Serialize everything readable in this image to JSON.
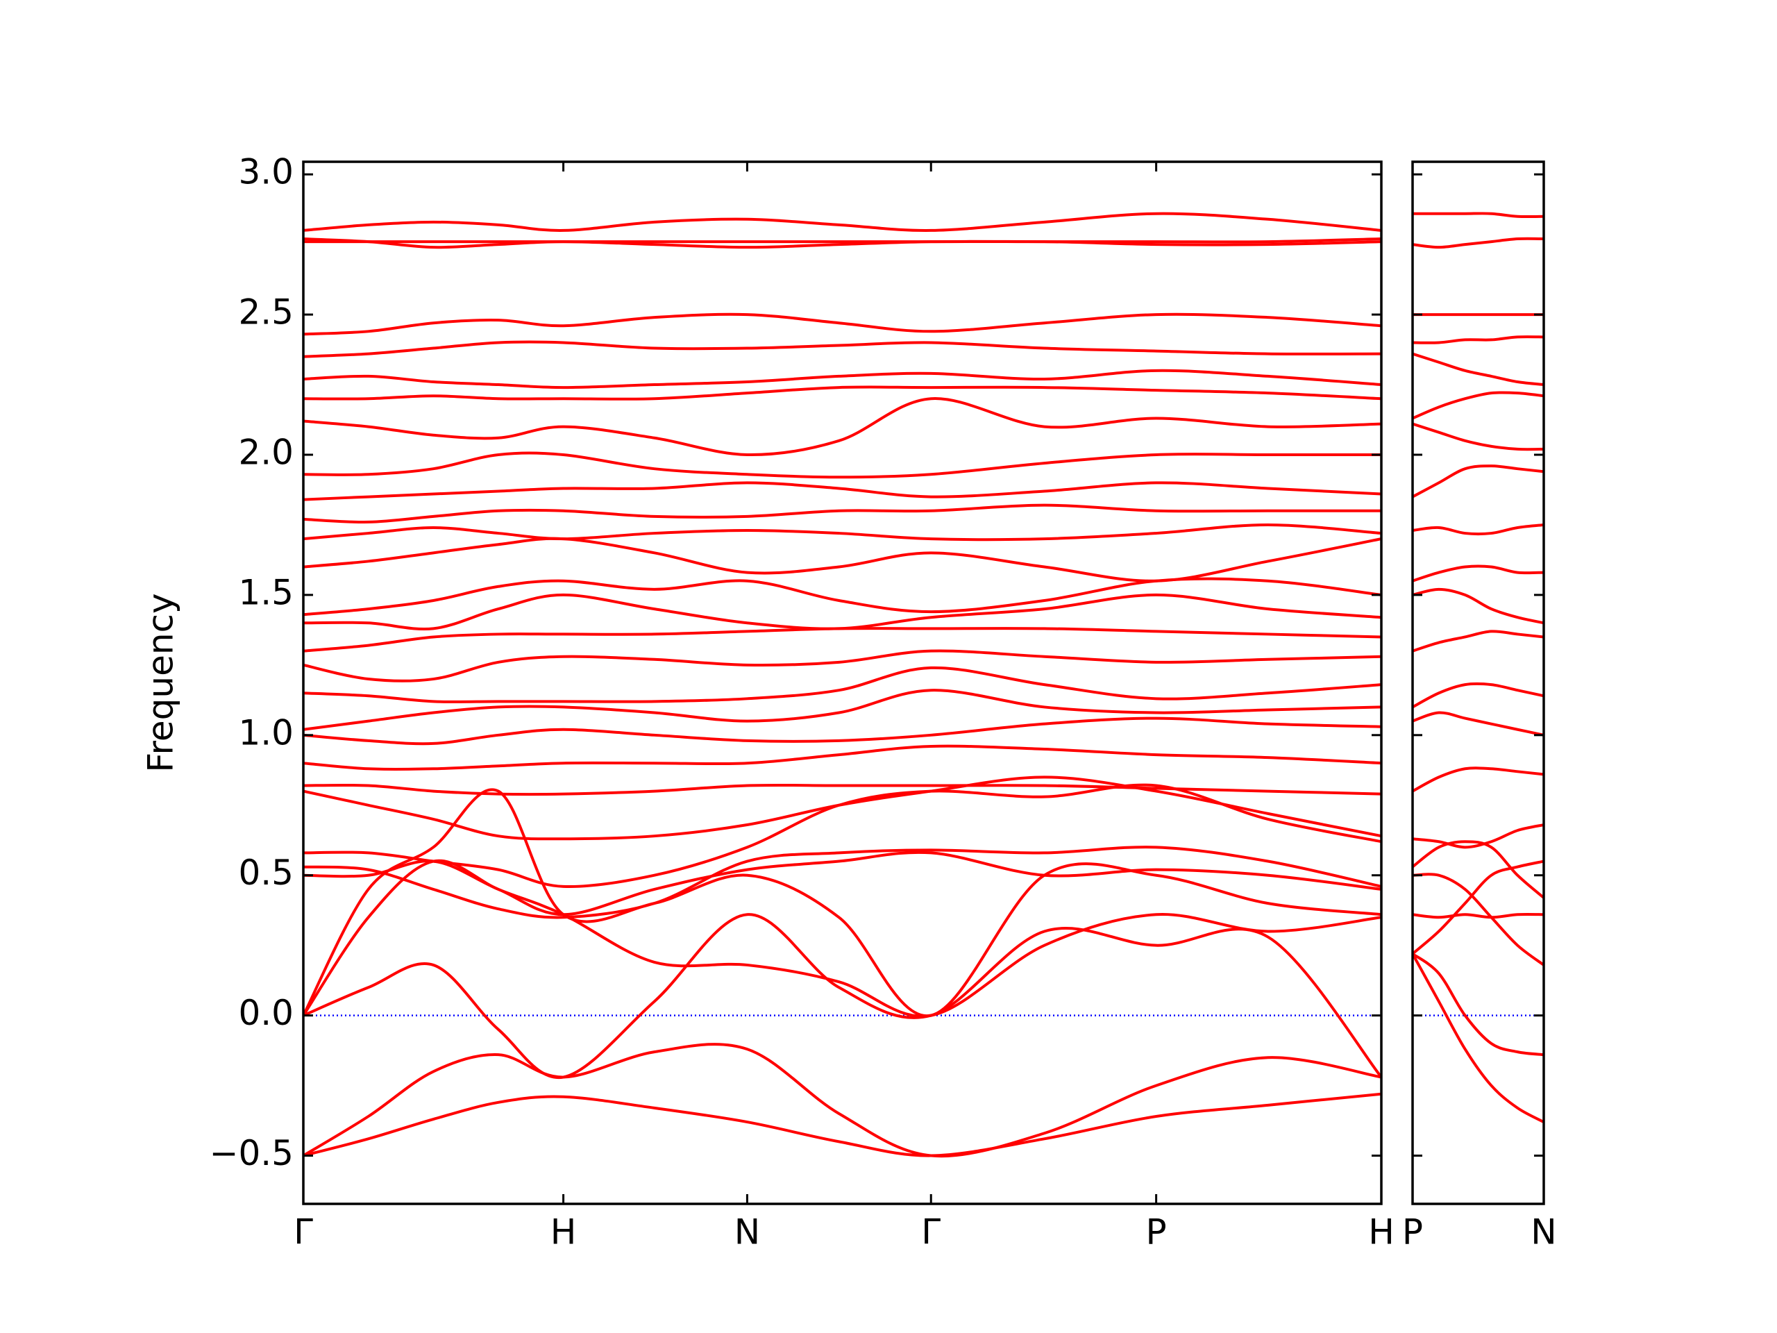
{
  "chart_data": [
    {
      "type": "line",
      "ylabel": "Frequency",
      "color": "#ff0000",
      "reference_line": {
        "value": 0,
        "color": "#0000ff",
        "style": "dotted"
      },
      "xlim": [
        0,
        4.146
      ],
      "ylim": [
        -0.672,
        3.045
      ],
      "xticks": [
        {
          "value": 0,
          "label": "Γ"
        },
        {
          "value": 1,
          "label": "H"
        },
        {
          "value": 1.707,
          "label": "N"
        },
        {
          "value": 2.414,
          "label": "Γ"
        },
        {
          "value": 3.28,
          "label": "P"
        },
        {
          "value": 4.146,
          "label": "H"
        }
      ],
      "yticks": [
        {
          "value": -0.5,
          "label": "−0.5"
        },
        {
          "value": 0,
          "label": "0.0"
        },
        0.5,
        {
          "value": 1,
          "label": "1.0"
        },
        1.5,
        {
          "value": 2,
          "label": "2.0"
        },
        2.5,
        {
          "value": 3,
          "label": "3.0"
        }
      ],
      "x": [
        0,
        0.25,
        0.5,
        0.75,
        1,
        1.35,
        1.707,
        2.06,
        2.414,
        2.85,
        3.28,
        3.71,
        4.146
      ],
      "series": [
        {
          "values": [
            -0.5,
            -0.44,
            -0.37,
            -0.31,
            -0.29,
            -0.33,
            -0.38,
            -0.45,
            -0.5,
            -0.44,
            -0.36,
            -0.32,
            -0.28
          ]
        },
        {
          "values": [
            -0.5,
            -0.36,
            -0.2,
            -0.14,
            -0.22,
            -0.13,
            -0.12,
            -0.35,
            -0.5,
            -0.42,
            -0.25,
            -0.15,
            -0.22
          ]
        },
        {
          "values": [
            0,
            0.1,
            0.18,
            -0.05,
            -0.22,
            0.05,
            0.36,
            0.1,
            0,
            0.3,
            0.25,
            0.28,
            -0.22
          ]
        },
        {
          "values": [
            0,
            0.35,
            0.55,
            0.45,
            0.36,
            0.19,
            0.18,
            0.12,
            0,
            0.25,
            0.36,
            0.3,
            0.35
          ]
        },
        {
          "values": [
            0,
            0.45,
            0.6,
            0.8,
            0.36,
            0.4,
            0.5,
            0.35,
            0,
            0.5,
            0.5,
            0.4,
            0.36
          ]
        },
        {
          "values": [
            0.5,
            0.5,
            0.55,
            0.45,
            0.36,
            0.45,
            0.52,
            0.55,
            0.58,
            0.5,
            0.52,
            0.5,
            0.45
          ]
        },
        {
          "values": [
            0.53,
            0.52,
            0.45,
            0.38,
            0.35,
            0.4,
            0.55,
            0.58,
            0.59,
            0.58,
            0.6,
            0.55,
            0.46
          ]
        },
        {
          "values": [
            0.58,
            0.58,
            0.55,
            0.52,
            0.46,
            0.5,
            0.6,
            0.75,
            0.8,
            0.78,
            0.82,
            0.7,
            0.62
          ]
        },
        {
          "values": [
            0.8,
            0.75,
            0.7,
            0.64,
            0.63,
            0.64,
            0.68,
            0.75,
            0.8,
            0.85,
            0.8,
            0.72,
            0.64
          ]
        },
        {
          "values": [
            0.82,
            0.82,
            0.8,
            0.79,
            0.79,
            0.8,
            0.82,
            0.82,
            0.82,
            0.82,
            0.81,
            0.8,
            0.79
          ]
        },
        {
          "values": [
            0.9,
            0.88,
            0.88,
            0.89,
            0.9,
            0.9,
            0.9,
            0.93,
            0.96,
            0.95,
            0.93,
            0.92,
            0.9
          ]
        },
        {
          "values": [
            1.0,
            0.98,
            0.97,
            1.0,
            1.02,
            1.0,
            0.98,
            0.98,
            1.0,
            1.04,
            1.06,
            1.04,
            1.03
          ]
        },
        {
          "values": [
            1.02,
            1.05,
            1.08,
            1.1,
            1.1,
            1.08,
            1.05,
            1.08,
            1.16,
            1.1,
            1.08,
            1.09,
            1.1
          ]
        },
        {
          "values": [
            1.15,
            1.14,
            1.12,
            1.12,
            1.12,
            1.12,
            1.13,
            1.16,
            1.24,
            1.18,
            1.13,
            1.15,
            1.18
          ]
        },
        {
          "values": [
            1.25,
            1.2,
            1.2,
            1.26,
            1.28,
            1.27,
            1.25,
            1.26,
            1.3,
            1.28,
            1.26,
            1.27,
            1.28
          ]
        },
        {
          "values": [
            1.3,
            1.32,
            1.35,
            1.36,
            1.36,
            1.36,
            1.37,
            1.38,
            1.38,
            1.38,
            1.37,
            1.36,
            1.35
          ]
        },
        {
          "values": [
            1.4,
            1.4,
            1.38,
            1.45,
            1.5,
            1.45,
            1.4,
            1.38,
            1.42,
            1.45,
            1.5,
            1.45,
            1.42
          ]
        },
        {
          "values": [
            1.43,
            1.45,
            1.48,
            1.53,
            1.55,
            1.52,
            1.55,
            1.48,
            1.44,
            1.48,
            1.55,
            1.55,
            1.5
          ]
        },
        {
          "values": [
            1.6,
            1.62,
            1.65,
            1.68,
            1.7,
            1.65,
            1.58,
            1.6,
            1.65,
            1.6,
            1.55,
            1.62,
            1.7
          ]
        },
        {
          "values": [
            1.7,
            1.72,
            1.74,
            1.72,
            1.7,
            1.72,
            1.73,
            1.72,
            1.7,
            1.7,
            1.72,
            1.75,
            1.72
          ]
        },
        {
          "values": [
            1.77,
            1.76,
            1.78,
            1.8,
            1.8,
            1.78,
            1.78,
            1.8,
            1.8,
            1.82,
            1.8,
            1.8,
            1.8
          ]
        },
        {
          "values": [
            1.84,
            1.85,
            1.86,
            1.87,
            1.88,
            1.88,
            1.9,
            1.88,
            1.85,
            1.87,
            1.9,
            1.88,
            1.86
          ]
        },
        {
          "values": [
            1.93,
            1.93,
            1.95,
            2.0,
            2.0,
            1.95,
            1.93,
            1.92,
            1.93,
            1.97,
            2.0,
            2.0,
            2.0
          ]
        },
        {
          "values": [
            2.12,
            2.1,
            2.07,
            2.06,
            2.1,
            2.06,
            2.0,
            2.05,
            2.2,
            2.1,
            2.13,
            2.1,
            2.11
          ]
        },
        {
          "values": [
            2.2,
            2.2,
            2.21,
            2.2,
            2.2,
            2.2,
            2.22,
            2.24,
            2.24,
            2.24,
            2.23,
            2.22,
            2.2
          ]
        },
        {
          "values": [
            2.27,
            2.28,
            2.26,
            2.25,
            2.24,
            2.25,
            2.26,
            2.28,
            2.29,
            2.27,
            2.3,
            2.28,
            2.25
          ]
        },
        {
          "values": [
            2.35,
            2.36,
            2.38,
            2.4,
            2.4,
            2.38,
            2.38,
            2.39,
            2.4,
            2.38,
            2.37,
            2.36,
            2.36
          ]
        },
        {
          "values": [
            2.43,
            2.44,
            2.47,
            2.48,
            2.46,
            2.49,
            2.5,
            2.47,
            2.44,
            2.47,
            2.5,
            2.49,
            2.46
          ]
        },
        {
          "values": [
            2.76,
            2.76,
            2.76,
            2.76,
            2.76,
            2.76,
            2.76,
            2.76,
            2.76,
            2.76,
            2.75,
            2.75,
            2.76
          ]
        },
        {
          "values": [
            2.77,
            2.76,
            2.74,
            2.75,
            2.76,
            2.75,
            2.74,
            2.75,
            2.76,
            2.76,
            2.76,
            2.76,
            2.77
          ]
        },
        {
          "values": [
            2.8,
            2.82,
            2.83,
            2.82,
            2.8,
            2.83,
            2.84,
            2.82,
            2.8,
            2.83,
            2.86,
            2.84,
            2.8
          ]
        }
      ]
    },
    {
      "type": "line",
      "color": "#ff0000",
      "reference_line": {
        "value": 0,
        "color": "#0000ff",
        "style": "dotted"
      },
      "xlim": [
        0,
        0.5
      ],
      "ylim": [
        -0.672,
        3.045
      ],
      "xticks": [
        {
          "value": 0,
          "label": "P"
        },
        {
          "value": 0.5,
          "label": "N"
        }
      ],
      "yticks": [
        -0.5,
        0,
        0.5,
        1,
        1.5,
        2,
        2.5,
        3
      ],
      "x": [
        0,
        0.1,
        0.2,
        0.3,
        0.4,
        0.5
      ],
      "series": [
        {
          "values": [
            0.22,
            0.05,
            -0.12,
            -0.25,
            -0.33,
            -0.38
          ]
        },
        {
          "values": [
            0.22,
            0.15,
            0.0,
            -0.1,
            -0.13,
            -0.14
          ]
        },
        {
          "values": [
            0.22,
            0.3,
            0.4,
            0.5,
            0.53,
            0.55
          ]
        },
        {
          "values": [
            0.36,
            0.35,
            0.36,
            0.35,
            0.36,
            0.36
          ]
        },
        {
          "values": [
            0.5,
            0.5,
            0.45,
            0.35,
            0.25,
            0.18
          ]
        },
        {
          "values": [
            0.53,
            0.6,
            0.62,
            0.6,
            0.5,
            0.42
          ]
        },
        {
          "values": [
            0.63,
            0.62,
            0.6,
            0.62,
            0.66,
            0.68
          ]
        },
        {
          "values": [
            0.8,
            0.85,
            0.88,
            0.88,
            0.87,
            0.86
          ]
        },
        {
          "values": [
            1.05,
            1.08,
            1.06,
            1.04,
            1.02,
            1.0
          ]
        },
        {
          "values": [
            1.1,
            1.15,
            1.18,
            1.18,
            1.16,
            1.14
          ]
        },
        {
          "values": [
            1.3,
            1.33,
            1.35,
            1.37,
            1.36,
            1.35
          ]
        },
        {
          "values": [
            1.5,
            1.52,
            1.5,
            1.45,
            1.42,
            1.4
          ]
        },
        {
          "values": [
            1.55,
            1.58,
            1.6,
            1.6,
            1.58,
            1.58
          ]
        },
        {
          "values": [
            1.73,
            1.74,
            1.72,
            1.72,
            1.74,
            1.75
          ]
        },
        {
          "values": [
            1.85,
            1.9,
            1.95,
            1.96,
            1.95,
            1.94
          ]
        },
        {
          "values": [
            2.11,
            2.08,
            2.05,
            2.03,
            2.02,
            2.02
          ]
        },
        {
          "values": [
            2.13,
            2.17,
            2.2,
            2.22,
            2.22,
            2.21
          ]
        },
        {
          "values": [
            2.36,
            2.33,
            2.3,
            2.28,
            2.26,
            2.25
          ]
        },
        {
          "values": [
            2.4,
            2.4,
            2.41,
            2.41,
            2.42,
            2.42
          ]
        },
        {
          "values": [
            2.5,
            2.5,
            2.5,
            2.5,
            2.5,
            2.5
          ]
        },
        {
          "values": [
            2.75,
            2.74,
            2.75,
            2.76,
            2.77,
            2.77
          ]
        },
        {
          "values": [
            2.86,
            2.86,
            2.86,
            2.86,
            2.85,
            2.85
          ]
        }
      ]
    }
  ]
}
